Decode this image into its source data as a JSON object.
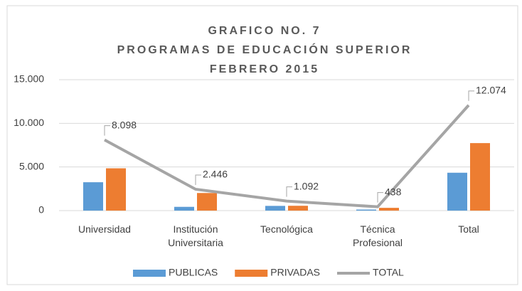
{
  "chart_data": {
    "type": "bar",
    "title": [
      "GRAFICO NO. 7",
      "PROGRAMAS DE EDUCACIÓN SUPERIOR",
      "FEBRERO 2015"
    ],
    "categories": [
      "Universidad",
      "Institución Universitaria",
      "Tecnológica",
      "Técnica Profesional",
      "Total"
    ],
    "series": [
      {
        "name": "PUBLICAS",
        "color": "#5b9bd5",
        "type": "bar",
        "values": [
          3250,
          430,
          540,
          120,
          4340
        ]
      },
      {
        "name": "PRIVADAS",
        "color": "#ed7d31",
        "type": "bar",
        "values": [
          4848,
          2016,
          552,
          318,
          7734
        ]
      },
      {
        "name": "TOTAL",
        "color": "#a5a5a5",
        "type": "line",
        "values": [
          8098,
          2446,
          1092,
          438,
          12074
        ],
        "value_labels": [
          "8.098",
          "2.446",
          "1.092",
          "438",
          "12.074"
        ]
      }
    ],
    "ylim": [
      0,
      15000
    ],
    "yticks": [
      0,
      {
        "value": 5000,
        "label": "5.000"
      },
      {
        "value": 10000,
        "label": "10.000"
      },
      {
        "value": 15000,
        "label": "15.000"
      }
    ],
    "grid": true,
    "legend": "bottom"
  }
}
